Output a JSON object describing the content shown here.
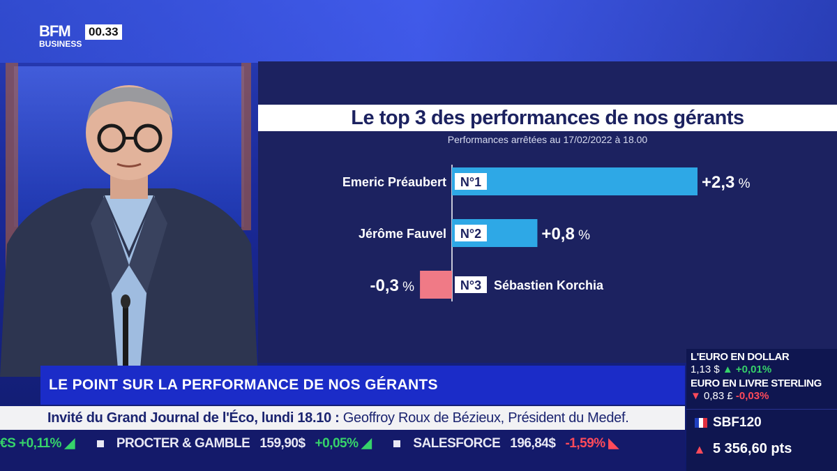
{
  "channel": {
    "logo_top": "BFM",
    "logo_bottom": "BUSINESS",
    "clock": "00.33"
  },
  "chart": {
    "title": "Le top 3 des performances de nos gérants",
    "subtitle": "Performances arrêtées au 17/02/2022 à 18.00"
  },
  "chart_data": {
    "type": "bar",
    "orientation": "horizontal",
    "title": "Le top 3 des performances de nos gérants",
    "subtitle": "Performances arrêtées au 17/02/2022 à 18.00",
    "categories": [
      "Emeric Préaubert",
      "Jérôme Fauvel",
      "Sébastien Korchia"
    ],
    "ranks": [
      "N°1",
      "N°2",
      "N°3"
    ],
    "values": [
      2.3,
      0.8,
      -0.3
    ],
    "value_labels": [
      "+2,3",
      "+0,8",
      "-0,3"
    ],
    "unit": "%",
    "colors": {
      "positive": "#2ea8e6",
      "negative": "#f07a86"
    },
    "xlim": [
      -0.3,
      2.3
    ]
  },
  "lower_third": {
    "title": "LE POINT SUR LA PERFORMANCE DE NOS GÉRANTS"
  },
  "info_strip": {
    "bold": "Invité du Grand Journal de l'Éco, lundi 18.10 :",
    "rest": " Geoffroy Roux de Bézieux, Président du Medef."
  },
  "ticker": [
    {
      "type": "change",
      "text": "+0,11%",
      "dir": "up",
      "lead": "€S"
    },
    {
      "type": "name",
      "text": "PROCTER & GAMBLE"
    },
    {
      "type": "price",
      "text": "159,90$"
    },
    {
      "type": "change",
      "text": "+0,05%",
      "dir": "up"
    },
    {
      "type": "name",
      "text": "SALESFORCE"
    },
    {
      "type": "price",
      "text": "196,84$"
    },
    {
      "type": "change",
      "text": "-1,59%",
      "dir": "down"
    }
  ],
  "market": {
    "eur_usd_label": "L'EURO EN DOLLAR",
    "eur_usd_value": "1,13 $",
    "eur_usd_change": "+0,01%",
    "eur_gbp_label": "EURO EN LIVRE STERLING",
    "eur_gbp_value": "0,83 £",
    "eur_gbp_change": "-0,03%",
    "index_name": "SBF120",
    "index_value": "5 356,60 pts"
  }
}
